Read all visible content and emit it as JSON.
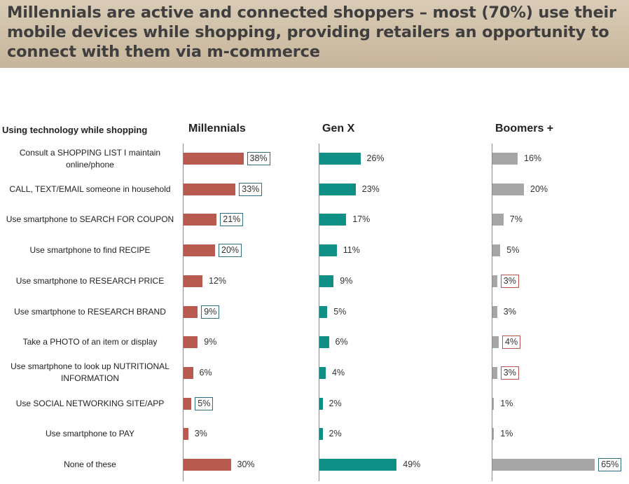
{
  "title": "Millennials are active and connected shoppers – most (70%) use their mobile devices while shopping, providing retailers an opportunity to connect with them via m-commerce",
  "chart_data": {
    "type": "bar",
    "orientation": "horizontal",
    "row_header": "Using technology while shopping",
    "categories": [
      "Consult a SHOPPING LIST I maintain online/phone",
      "CALL, TEXT/EMAIL someone in household",
      "Use smartphone to SEARCH FOR COUPON",
      "Use smartphone to find RECIPE",
      "Use smartphone to RESEARCH PRICE",
      "Use smartphone to RESEARCH BRAND",
      "Take a PHOTO of an item or display",
      "Use smartphone to look up NUTRITIONAL INFORMATION",
      "Use SOCIAL NETWORKING SITE/APP",
      "Use smartphone to PAY",
      "None of these"
    ],
    "series": [
      {
        "name": "Millennials",
        "color": "#b85a4f",
        "values": [
          38,
          33,
          21,
          20,
          12,
          9,
          9,
          6,
          5,
          3,
          30
        ],
        "highlight": [
          "blue",
          "blue",
          "blue",
          "blue",
          "",
          "blue",
          "",
          "",
          "blue",
          "",
          ""
        ]
      },
      {
        "name": "Gen X",
        "color": "#0f8f86",
        "values": [
          26,
          23,
          17,
          11,
          9,
          5,
          6,
          4,
          2,
          2,
          49
        ],
        "highlight": [
          "",
          "",
          "",
          "",
          "",
          "",
          "",
          "",
          "",
          "",
          ""
        ]
      },
      {
        "name": "Boomers +",
        "color": "#a6a6a6",
        "values": [
          16,
          20,
          7,
          5,
          3,
          3,
          4,
          3,
          1,
          1,
          65
        ],
        "highlight": [
          "",
          "",
          "",
          "",
          "red",
          "",
          "red",
          "red",
          "",
          "",
          "blue"
        ]
      }
    ],
    "value_suffix": "%",
    "xlim": [
      0,
      70
    ]
  }
}
